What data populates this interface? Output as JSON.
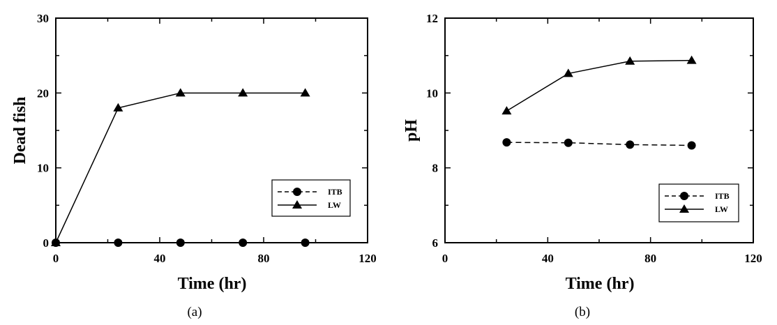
{
  "chart_data": [
    {
      "type": "line",
      "panel_label": "(a)",
      "xlabel": "Time (hr)",
      "ylabel": "Dead fish",
      "xlim": [
        0,
        120
      ],
      "ylim": [
        0,
        30
      ],
      "xticks": [
        0,
        40,
        80,
        120
      ],
      "yticks": [
        0,
        10,
        20,
        30
      ],
      "grid": false,
      "legend_position": "bottom-right",
      "series": [
        {
          "name": "ITB",
          "marker": "circle",
          "line": "dashed",
          "x": [
            0,
            24,
            48,
            72,
            96
          ],
          "y": [
            0,
            0,
            0,
            0,
            0
          ]
        },
        {
          "name": "LW",
          "marker": "triangle",
          "line": "solid",
          "x": [
            0,
            24,
            48,
            72,
            96
          ],
          "y": [
            0,
            18,
            20,
            20,
            20
          ]
        }
      ]
    },
    {
      "type": "line",
      "panel_label": "(b)",
      "xlabel": "Time (hr)",
      "ylabel": "pH",
      "xlim": [
        0,
        120
      ],
      "ylim": [
        6,
        12
      ],
      "xticks": [
        0,
        40,
        80,
        120
      ],
      "yticks": [
        6,
        8,
        10,
        12
      ],
      "grid": false,
      "legend_position": "bottom-right",
      "series": [
        {
          "name": "ITB",
          "marker": "circle",
          "line": "dashed",
          "x": [
            24,
            48,
            72,
            96
          ],
          "y": [
            8.68,
            8.67,
            8.62,
            8.6
          ]
        },
        {
          "name": "LW",
          "marker": "triangle",
          "line": "solid",
          "x": [
            24,
            48,
            72,
            96
          ],
          "y": [
            9.52,
            10.52,
            10.85,
            10.87
          ]
        }
      ]
    }
  ]
}
